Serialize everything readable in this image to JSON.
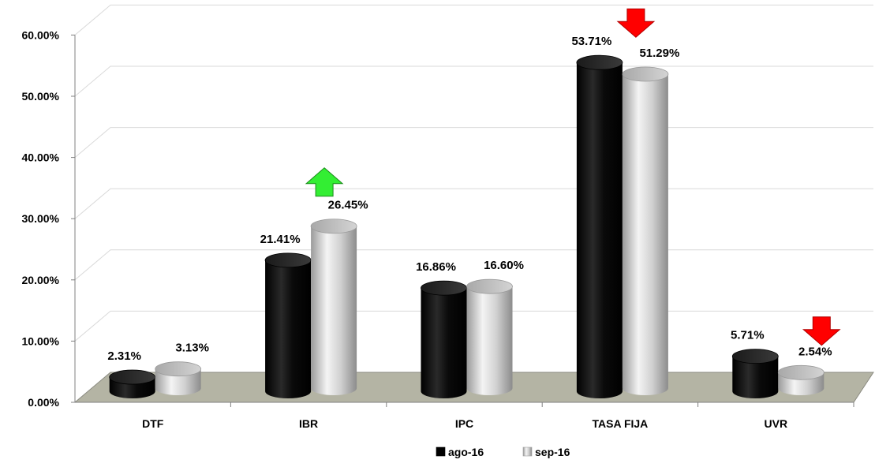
{
  "chart_data": {
    "type": "bar",
    "style": "3d-cylinder",
    "categories": [
      "DTF",
      "IBR",
      "IPC",
      "TASA FIJA",
      "UVR"
    ],
    "series": [
      {
        "name": "ago-16",
        "values": [
          2.31,
          21.41,
          16.86,
          53.71,
          5.71
        ],
        "labels": [
          "2.31%",
          "21.41%",
          "16.86%",
          "53.71%",
          "5.71%"
        ],
        "color": "#000000"
      },
      {
        "name": "sep-16",
        "values": [
          3.13,
          26.45,
          16.6,
          51.29,
          2.54
        ],
        "labels": [
          "3.13%",
          "26.45%",
          "16.60%",
          "51.29%",
          "2.54%"
        ],
        "color": "#c8c8c8"
      }
    ],
    "y_ticks": [
      "0.00%",
      "10.00%",
      "20.00%",
      "30.00%",
      "40.00%",
      "50.00%",
      "60.00%"
    ],
    "ylim": [
      0,
      60
    ],
    "grid": true,
    "legend_position": "bottom",
    "floor_color": "#b4b4a4",
    "annotations": [
      {
        "category": "IBR",
        "direction": "up",
        "color": "#33ee33"
      },
      {
        "category": "TASA FIJA",
        "direction": "down",
        "color": "#ff0000"
      },
      {
        "category": "UVR",
        "direction": "down",
        "color": "#ff0000"
      }
    ]
  }
}
